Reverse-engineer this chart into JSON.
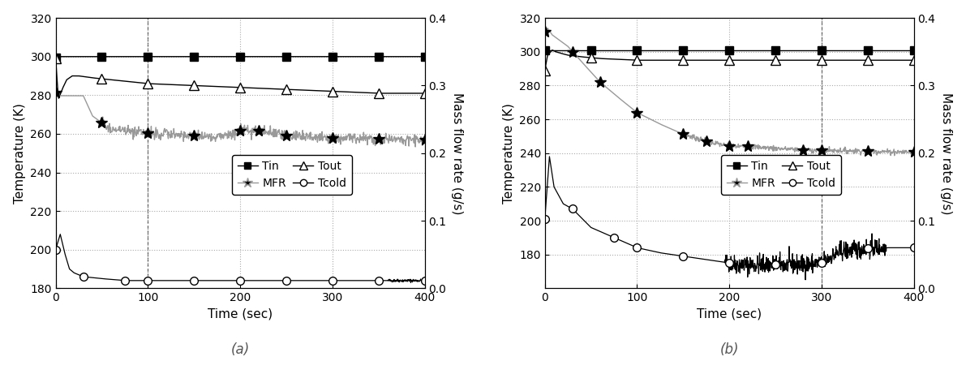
{
  "fig_width": 11.91,
  "fig_height": 4.61,
  "dpi": 100,
  "panel_a": {
    "label": "(a)",
    "xlim": [
      0,
      400
    ],
    "ylim_temp": [
      180,
      320
    ],
    "ylim_mfr": [
      0.0,
      0.4
    ],
    "yticks_temp": [
      180,
      200,
      220,
      240,
      260,
      280,
      300,
      320
    ],
    "yticks_mfr": [
      0.0,
      0.1,
      0.2,
      0.3,
      0.4
    ],
    "xticks": [
      0,
      100,
      200,
      300,
      400
    ],
    "xlabel": "Time (sec)",
    "ylabel_left": "Temperature (K)",
    "ylabel_right": "Mass flow rate (g/s)",
    "Tin": {
      "t": [
        0,
        2,
        5,
        400
      ],
      "v": [
        299.5,
        300,
        300,
        300
      ]
    },
    "Tin_markers": [
      0,
      50,
      100,
      150,
      200,
      250,
      300,
      350,
      400
    ],
    "Tout": {
      "t": [
        0,
        3,
        8,
        12,
        18,
        25,
        40,
        60,
        100,
        150,
        200,
        250,
        300,
        350,
        400
      ],
      "v": [
        299,
        278,
        284,
        288,
        290,
        290,
        289,
        288,
        286,
        285,
        284,
        283,
        282,
        281,
        281
      ]
    },
    "Tout_markers": [
      0,
      50,
      100,
      150,
      200,
      250,
      300,
      350,
      400
    ],
    "Tcold": {
      "t": [
        0,
        5,
        10,
        15,
        20,
        30,
        50,
        75,
        100,
        150,
        200,
        250,
        300,
        350,
        400
      ],
      "v": [
        200,
        208,
        198,
        190,
        188,
        186,
        185,
        184,
        184,
        184,
        184,
        184,
        184,
        184,
        184
      ]
    },
    "Tcold_markers": [
      0,
      30,
      75,
      100,
      150,
      200,
      250,
      300,
      350,
      400
    ],
    "MFR": {
      "t": [
        0,
        3,
        5,
        10,
        20,
        30,
        40,
        50,
        60,
        80,
        100,
        120,
        150,
        180,
        200,
        220,
        250,
        280,
        300,
        320,
        350,
        380,
        400
      ],
      "v": [
        0.29,
        0.285,
        0.285,
        0.285,
        0.285,
        0.285,
        0.255,
        0.245,
        0.235,
        0.232,
        0.23,
        0.228,
        0.226,
        0.224,
        0.233,
        0.233,
        0.226,
        0.224,
        0.222,
        0.222,
        0.221,
        0.22,
        0.22
      ]
    },
    "MFR_markers": [
      0,
      50,
      100,
      150,
      200,
      220,
      250,
      300,
      350,
      400
    ],
    "MFR_noise_start": 50,
    "MFR_noise_scale": 0.004,
    "MFR_noise_seed": 5,
    "vline_x": 100
  },
  "panel_b": {
    "label": "(b)",
    "xlim": [
      0,
      400
    ],
    "ylim_temp": [
      160,
      320
    ],
    "ylim_mfr": [
      0.0,
      0.4
    ],
    "yticks_temp": [
      180,
      200,
      220,
      240,
      260,
      280,
      300,
      320
    ],
    "yticks_mfr": [
      0.0,
      0.1,
      0.2,
      0.3,
      0.4
    ],
    "xticks": [
      0,
      100,
      200,
      300,
      400
    ],
    "xlabel": "Time (sec)",
    "ylabel_left": "Temperature (K)",
    "ylabel_right": "Mass flow rate (g/s)",
    "Tin": {
      "t": [
        0,
        5,
        10,
        400
      ],
      "v": [
        301,
        301,
        301,
        301
      ]
    },
    "Tin_markers": [
      0,
      50,
      100,
      150,
      200,
      250,
      300,
      350,
      400
    ],
    "Tout": {
      "t": [
        0,
        3,
        8,
        12,
        18,
        25,
        40,
        60,
        100,
        150,
        200,
        250,
        300,
        350,
        400
      ],
      "v": [
        289,
        298,
        301,
        300,
        299,
        298,
        297,
        296,
        295,
        295,
        295,
        295,
        295,
        295,
        295
      ]
    },
    "Tout_markers": [
      0,
      50,
      100,
      150,
      200,
      250,
      300,
      350,
      400
    ],
    "Tcold": {
      "t": [
        0,
        5,
        10,
        20,
        30,
        50,
        75,
        100,
        125,
        150,
        175,
        200,
        210,
        220,
        240,
        260,
        280,
        300,
        320,
        340,
        360,
        380,
        400
      ],
      "v": [
        201,
        238,
        220,
        210,
        207,
        196,
        190,
        184,
        181,
        179,
        177,
        175,
        174,
        174,
        174,
        174,
        174,
        175,
        182,
        183,
        184,
        184,
        184
      ]
    },
    "Tcold_markers": [
      0,
      30,
      75,
      100,
      150,
      200,
      250,
      300,
      350,
      400
    ],
    "MFR": {
      "t": [
        0,
        3,
        8,
        15,
        25,
        40,
        60,
        80,
        100,
        125,
        150,
        175,
        200,
        220,
        250,
        280,
        300,
        320,
        350,
        380,
        400
      ],
      "v": [
        0.38,
        0.385,
        0.375,
        0.368,
        0.358,
        0.335,
        0.305,
        0.282,
        0.26,
        0.243,
        0.228,
        0.218,
        0.21,
        0.21,
        0.207,
        0.205,
        0.204,
        0.204,
        0.203,
        0.202,
        0.202
      ]
    },
    "MFR_markers": [
      0,
      30,
      60,
      100,
      150,
      175,
      200,
      220,
      280,
      300,
      350,
      400
    ],
    "MFR_noise_start": 150,
    "MFR_noise_scale": 0.002,
    "MFR_noise_seed": 7,
    "vline_x": 300
  },
  "grid_color": "#aaaaaa",
  "grid_linestyle": ":",
  "marker_size_square": 7,
  "marker_size_triangle": 8,
  "marker_size_circle": 7,
  "marker_size_star": 10
}
